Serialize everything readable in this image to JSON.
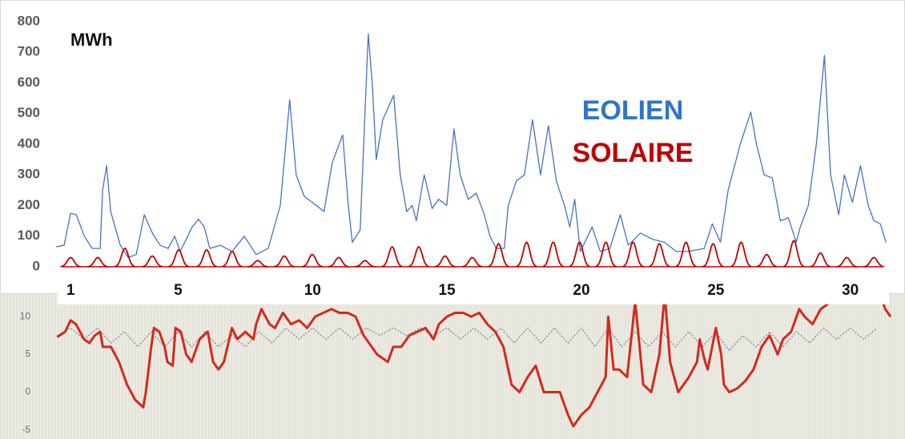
{
  "chart_data": [
    {
      "type": "line",
      "ylabel": "MWh",
      "xlim": [
        0.4,
        31.5
      ],
      "xticks": [
        1,
        5,
        10,
        15,
        20,
        25,
        30
      ],
      "ylim": [
        0,
        800
      ],
      "yticks": [
        0,
        100,
        200,
        300,
        400,
        500,
        600,
        700,
        800
      ],
      "grid": false,
      "series": [
        {
          "name": "EOLIEN",
          "color": "#4472c4",
          "legend_color": "#2e75c8",
          "x": [
            0.46,
            0.76,
            1.0,
            1.21,
            1.51,
            1.8,
            2.1,
            2.19,
            2.34,
            2.49,
            2.85,
            3.14,
            3.44,
            3.74,
            4.04,
            4.33,
            4.63,
            4.87,
            5.08,
            5.52,
            5.76,
            5.97,
            6.18,
            6.57,
            7.01,
            7.46,
            7.9,
            8.35,
            8.8,
            9.15,
            9.39,
            9.69,
            10.14,
            10.43,
            10.73,
            11.12,
            11.33,
            11.48,
            11.77,
            12.07,
            12.22,
            12.37,
            12.61,
            12.82,
            13.02,
            13.26,
            13.5,
            13.71,
            13.86,
            14.15,
            14.45,
            14.69,
            14.99,
            15.26,
            15.49,
            15.79,
            16.09,
            16.39,
            16.6,
            16.83,
            17.13,
            17.28,
            17.58,
            17.88,
            18.18,
            18.48,
            18.77,
            19.07,
            19.37,
            19.57,
            19.75,
            19.96,
            20.4,
            20.7,
            21.06,
            21.45,
            21.74,
            22.19,
            22.64,
            23.08,
            23.53,
            23.98,
            24.57,
            24.87,
            25.17,
            25.46,
            25.91,
            26.3,
            26.51,
            26.8,
            27.1,
            27.4,
            27.7,
            27.99,
            28.14,
            28.44,
            28.74,
            29.04,
            29.27,
            29.57,
            29.78,
            30.08,
            30.38,
            30.67,
            30.88,
            31.12,
            31.33
          ],
          "values": [
            65,
            70,
            175,
            170,
            100,
            60,
            60,
            250,
            330,
            180,
            70,
            30,
            40,
            170,
            110,
            70,
            60,
            100,
            50,
            130,
            155,
            130,
            60,
            70,
            50,
            100,
            40,
            60,
            200,
            545,
            300,
            230,
            200,
            180,
            340,
            430,
            200,
            80,
            120,
            760,
            600,
            350,
            480,
            520,
            560,
            300,
            180,
            200,
            150,
            300,
            190,
            220,
            200,
            450,
            300,
            220,
            240,
            170,
            100,
            60,
            60,
            200,
            280,
            300,
            480,
            300,
            460,
            280,
            200,
            130,
            220,
            50,
            130,
            50,
            60,
            170,
            70,
            110,
            90,
            80,
            50,
            50,
            60,
            140,
            80,
            250,
            400,
            505,
            400,
            300,
            290,
            150,
            160,
            80,
            130,
            200,
            400,
            690,
            300,
            170,
            300,
            210,
            330,
            200,
            150,
            140,
            80
          ]
        },
        {
          "name": "SOLAIRE",
          "color": "#c00000",
          "legend_color": "#c00000",
          "style": "peaks",
          "x": [
            1.0,
            2.01,
            3.02,
            4.04,
            5.02,
            6.06,
            7.01,
            7.96,
            8.95,
            9.99,
            10.97,
            11.95,
            12.96,
            13.95,
            14.93,
            15.94,
            16.92,
            17.96,
            18.95,
            19.93,
            20.91,
            21.92,
            22.9,
            23.89,
            24.9,
            25.94,
            26.89,
            27.9,
            28.89,
            29.87,
            30.88
          ],
          "values": [
            30,
            30,
            60,
            35,
            55,
            55,
            50,
            20,
            35,
            40,
            30,
            20,
            65,
            65,
            35,
            30,
            75,
            80,
            80,
            80,
            80,
            80,
            75,
            80,
            75,
            80,
            40,
            85,
            45,
            30,
            30
          ]
        }
      ]
    },
    {
      "type": "line",
      "xlim": [
        0.4,
        31.5
      ],
      "ylim": [
        -6.2,
        13.1
      ],
      "yticks": [
        10,
        5,
        0,
        -5
      ],
      "series": [
        {
          "color": "#7d8494",
          "dashed": true,
          "x": [
            0.5,
            1,
            1.5,
            2,
            2.5,
            3,
            3.5,
            4,
            4.5,
            5,
            5.5,
            6,
            6.5,
            7,
            7.5,
            8,
            8.5,
            9,
            9.5,
            10,
            10.5,
            11,
            11.5,
            12,
            12.5,
            13,
            13.5,
            14,
            14.5,
            15,
            15.5,
            16,
            16.5,
            17,
            17.5,
            18,
            18.5,
            19,
            19.5,
            20,
            20.5,
            21,
            21.5,
            22,
            22.5,
            23,
            23.5,
            24,
            24.5,
            25,
            25.5,
            26,
            26.5,
            27,
            27.5,
            28,
            28.5,
            29,
            29.5,
            30,
            30.5,
            31
          ],
          "values": [
            7.5,
            8.5,
            7,
            8.5,
            6.5,
            8,
            6,
            8,
            6,
            8,
            6,
            8,
            6,
            7.5,
            6,
            8,
            6.5,
            8.5,
            7,
            8.5,
            7,
            8.5,
            7,
            8.5,
            7.5,
            8.5,
            7.5,
            8.5,
            7.5,
            8.5,
            7,
            8.5,
            7,
            8.5,
            6.5,
            8.5,
            6.5,
            8.5,
            6.5,
            8.5,
            6,
            8.5,
            6,
            8,
            6,
            8,
            6,
            8,
            6,
            8,
            5.5,
            7.5,
            6,
            8,
            6,
            8,
            6.5,
            8.5,
            7,
            8.5,
            7,
            8.5
          ]
        },
        {
          "color": "#d42a1a",
          "dashed": false,
          "x": [
            0.5,
            0.8,
            1.0,
            1.2,
            1.5,
            1.7,
            1.9,
            2.1,
            2.2,
            2.5,
            2.8,
            3.1,
            3.4,
            3.7,
            3.8,
            4.0,
            4.1,
            4.3,
            4.5,
            4.6,
            4.8,
            4.9,
            5.1,
            5.3,
            5.5,
            5.8,
            6.1,
            6.3,
            6.5,
            6.7,
            7.0,
            7.2,
            7.5,
            7.8,
            7.9,
            8.1,
            8.4,
            8.6,
            8.9,
            9.2,
            9.5,
            9.8,
            10.1,
            10.4,
            10.7,
            11.0,
            11.3,
            11.6,
            11.9,
            12.1,
            12.4,
            12.6,
            12.8,
            13.0,
            13.3,
            13.6,
            13.9,
            14.2,
            14.5,
            14.7,
            15.0,
            15.3,
            15.6,
            15.9,
            16.2,
            16.5,
            16.8,
            17.1,
            17.4,
            17.7,
            18.0,
            18.3,
            18.6,
            18.9,
            19.2,
            19.5,
            19.7,
            20.0,
            20.3,
            20.6,
            20.9,
            21.0,
            21.2,
            21.4,
            21.7,
            22.0,
            22.3,
            22.6,
            22.9,
            23.1,
            23.3,
            23.6,
            23.8,
            24.0,
            24.3,
            24.4,
            24.6,
            24.7,
            25.0,
            25.2,
            25.3,
            25.5,
            25.8,
            26.1,
            26.4,
            26.7,
            27.0,
            27.3,
            27.5,
            27.8,
            28.1,
            28.3,
            28.6,
            28.9,
            29.3,
            29.8,
            30.2,
            30.7,
            31.0,
            31.1,
            31.3,
            31.5
          ],
          "values": [
            7.3,
            8,
            9.5,
            9,
            7,
            6.5,
            7.5,
            8,
            6,
            6,
            4,
            1,
            -1,
            -2,
            0,
            6,
            8.5,
            8,
            6,
            4,
            3.5,
            8.5,
            8,
            5,
            4,
            7,
            8,
            4,
            3,
            4,
            8.5,
            7,
            8,
            7,
            9,
            11,
            9,
            8.5,
            10.5,
            9,
            9.5,
            8.5,
            10,
            10.5,
            11,
            10.5,
            10.5,
            10,
            7.5,
            6.5,
            5,
            4.5,
            4,
            6,
            6,
            7.5,
            8,
            8.5,
            7,
            9,
            10,
            10.5,
            10.5,
            10,
            10.5,
            9,
            8,
            6,
            1,
            0,
            2,
            3.5,
            0,
            0,
            0,
            -3,
            -4.5,
            -3,
            -2,
            0,
            2,
            10,
            3,
            3,
            2,
            12,
            1,
            0,
            5,
            13,
            4,
            0,
            1,
            2,
            4,
            7,
            4,
            3,
            8.5,
            5,
            1,
            0,
            0.5,
            1.5,
            3,
            6,
            7.5,
            5,
            7,
            8,
            11,
            10,
            9,
            11,
            12,
            12,
            12,
            12.5,
            12,
            13,
            11,
            10
          ]
        }
      ]
    }
  ]
}
